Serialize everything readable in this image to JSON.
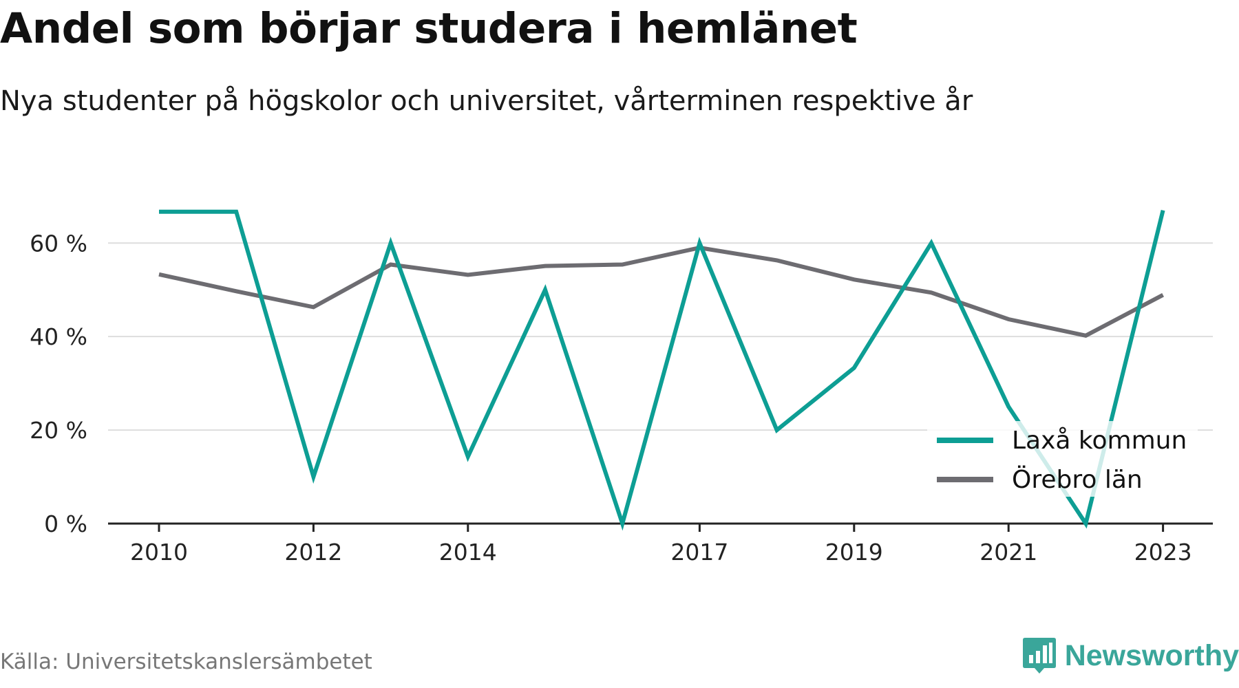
{
  "chart_data": {
    "type": "line",
    "title": "Andel som börjar studera i hemlänet",
    "subtitle": "Nya studenter på högskolor och universitet, vårterminen respektive år",
    "x": [
      2010,
      2011,
      2012,
      2013,
      2014,
      2015,
      2016,
      2017,
      2018,
      2019,
      2020,
      2021,
      2022,
      2023
    ],
    "x_tick_labels": [
      "2010",
      "2012",
      "2014",
      "2017",
      "2019",
      "2021",
      "2023"
    ],
    "y_ticks": [
      {
        "value": 0,
        "label": "0 %"
      },
      {
        "value": 20,
        "label": "20 %"
      },
      {
        "value": 40,
        "label": "40 %"
      },
      {
        "value": 60,
        "label": "60 %"
      }
    ],
    "ylim": [
      0,
      70
    ],
    "grid": true,
    "legend_position": "bottom-right",
    "series": [
      {
        "name": "Laxå kommun",
        "color": "#0d9e94",
        "values": [
          66.7,
          66.7,
          10,
          60,
          14.3,
          50,
          0,
          60,
          20,
          33.3,
          60,
          25,
          0,
          67
        ]
      },
      {
        "name": "Örebro län",
        "color": "#6d6c71",
        "values": [
          53.3,
          49.7,
          46.3,
          55.4,
          53.2,
          55.1,
          55.4,
          59,
          56.3,
          52.2,
          49.4,
          43.7,
          40.2,
          48.9
        ]
      }
    ],
    "source": "Källa: Universitetskanslersämbetet",
    "brand": "Newsworthy",
    "brand_color": "#3aa69a",
    "grid_color": "#dddddd",
    "axis_color": "#222222"
  }
}
